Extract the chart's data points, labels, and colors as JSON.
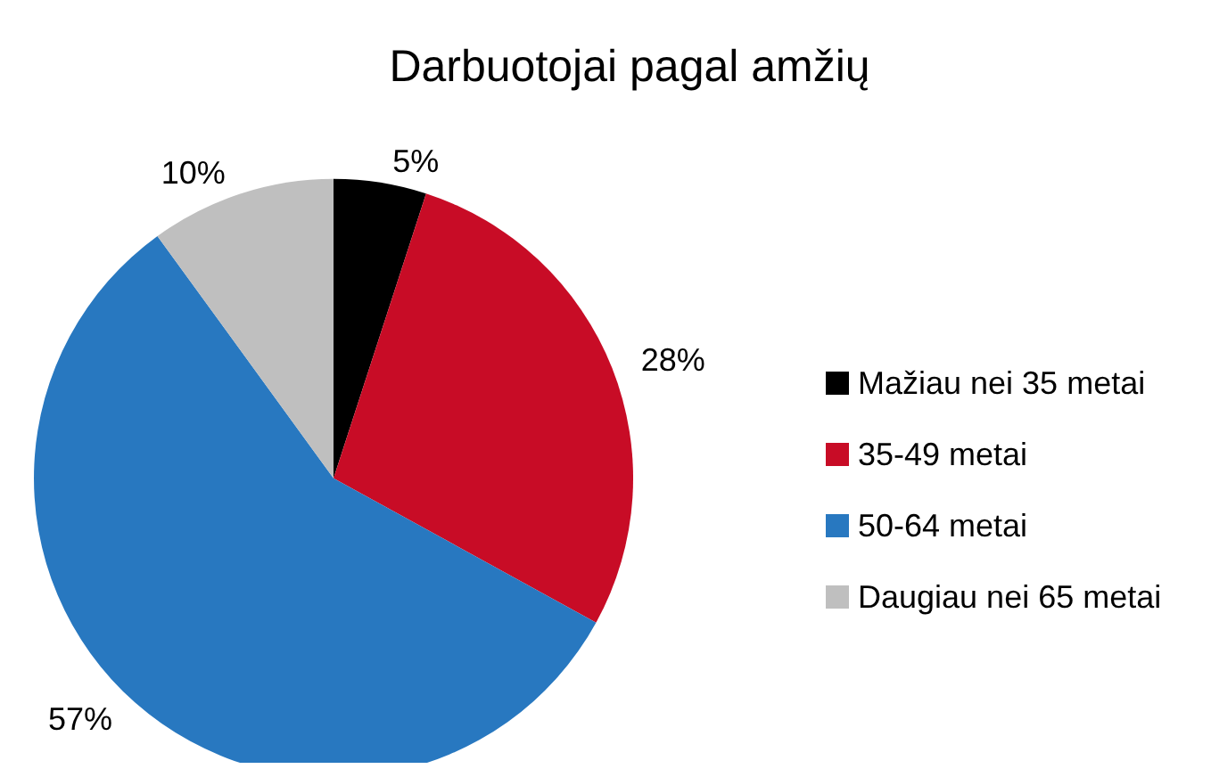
{
  "chart_data": {
    "type": "pie",
    "title": "Darbuotojai pagal amžių",
    "categories": [
      "Mažiau nei 35 metai",
      "35-49 metai",
      "50-64 metai",
      "Daugiau nei 65 metai"
    ],
    "values": [
      5,
      28,
      57,
      10
    ],
    "colors": [
      "#000000",
      "#c80c26",
      "#2878c0",
      "#bfbfbf"
    ],
    "value_labels": [
      "5%",
      "28%",
      "57%",
      "10%"
    ],
    "legend": "right"
  }
}
